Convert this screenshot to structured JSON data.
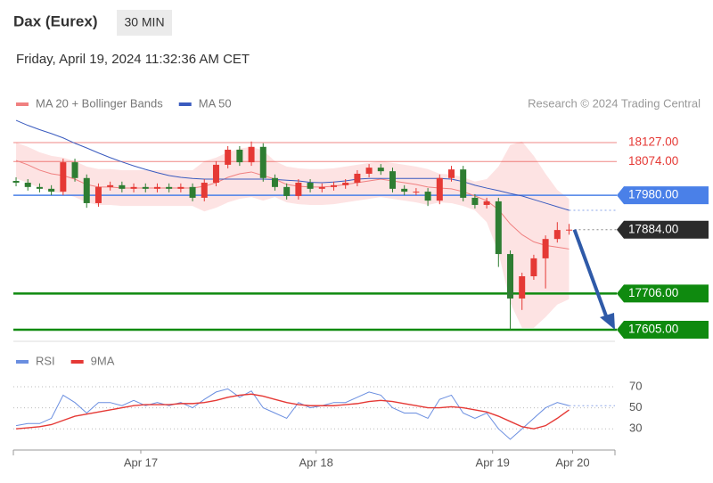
{
  "chart_data": {
    "type": "candlestick",
    "title": "Dax (Eurex)",
    "interval": "30 MIN",
    "subtitle": "Friday, April 19, 2024 11:32:36 AM CET",
    "credit": "Research © 2024 Trading Central",
    "up_color": "#e53935",
    "down_color": "#2e7d32",
    "ylim": [
      17580,
      18200
    ],
    "xlim": [
      -0.23,
      50.9
    ],
    "xticks": [
      {
        "value": 10.6,
        "label": "Apr 17"
      },
      {
        "value": 25.5,
        "label": "Apr 18"
      },
      {
        "value": 40.5,
        "label": "Apr 19"
      },
      {
        "value": 47.3,
        "label": "Apr 20"
      }
    ],
    "open": [
      18020,
      18015,
      18003,
      17998,
      17990,
      18072,
      18028,
      17958,
      18003,
      18008,
      17998,
      18003,
      17998,
      18003,
      17998,
      18003,
      17973,
      18015,
      18065,
      18107,
      18072,
      18115,
      18028,
      18003,
      17978,
      18015,
      17998,
      18003,
      18008,
      18015,
      18040,
      18057,
      18047,
      17998,
      17990,
      17990,
      17965,
      18028,
      18052,
      17973,
      17953,
      17963,
      17816,
      17692,
      17754,
      17804,
      17858,
      17883
    ],
    "high": [
      18030,
      18025,
      18013,
      18008,
      18082,
      18082,
      18038,
      18013,
      18018,
      18018,
      18013,
      18013,
      18013,
      18013,
      18013,
      18013,
      18025,
      18075,
      18117,
      18117,
      18130,
      18125,
      18038,
      18013,
      18025,
      18025,
      18013,
      18018,
      18025,
      18050,
      18067,
      18067,
      18057,
      18008,
      18000,
      18000,
      18038,
      18062,
      18062,
      17983,
      17973,
      17973,
      17826,
      17764,
      17814,
      17868,
      17905,
      17900
    ],
    "low": [
      18005,
      17993,
      17988,
      17980,
      17980,
      18018,
      17945,
      17948,
      17993,
      17988,
      17988,
      17988,
      17988,
      17988,
      17988,
      17963,
      17963,
      18005,
      18055,
      18062,
      18062,
      18018,
      17993,
      17968,
      17968,
      17988,
      17988,
      17993,
      17998,
      18005,
      18030,
      18037,
      17988,
      17980,
      17980,
      17950,
      17955,
      18018,
      17963,
      17943,
      17943,
      17780,
      17605,
      17660,
      17744,
      17720,
      17848,
      17870
    ],
    "close": [
      18015,
      18003,
      17998,
      17990,
      18072,
      18028,
      17958,
      18003,
      18008,
      17998,
      18003,
      17998,
      18003,
      17998,
      18003,
      17973,
      18015,
      18065,
      18107,
      18072,
      18115,
      18028,
      18003,
      17978,
      18015,
      17998,
      18003,
      18008,
      18015,
      18040,
      18057,
      18047,
      17998,
      17990,
      17990,
      17965,
      18028,
      18052,
      17973,
      17953,
      17963,
      17816,
      17692,
      17754,
      17804,
      17858,
      17883,
      17884
    ],
    "series": [
      {
        "name": "MA 20 + Bollinger Bands",
        "color": "#f08080",
        "values": [
          18077,
          18065,
          18050,
          18040,
          18035,
          18025,
          18010,
          18003,
          18003,
          18000,
          18000,
          18000,
          18000,
          18000,
          18000,
          18000,
          18005,
          18015,
          18030,
          18040,
          18045,
          18035,
          18025,
          18010,
          18005,
          18003,
          18003,
          18005,
          18010,
          18015,
          18020,
          18025,
          18020,
          18015,
          18010,
          18003,
          18000,
          17998,
          17990,
          17978,
          17965,
          17940,
          17900,
          17870,
          17850,
          17840,
          17835,
          17830
        ],
        "upper": [
          18127,
          18115,
          18100,
          18090,
          18085,
          18075,
          18060,
          18053,
          18053,
          18050,
          18050,
          18050,
          18050,
          18050,
          18050,
          18050,
          18075,
          18085,
          18100,
          18110,
          18115,
          18105,
          18075,
          18060,
          18055,
          18053,
          18053,
          18055,
          18060,
          18065,
          18070,
          18075,
          18070,
          18065,
          18060,
          18053,
          18040,
          18038,
          18030,
          18018,
          18025,
          18060,
          18120,
          18130,
          18090,
          18040,
          17995,
          17970
        ],
        "lower": [
          18027,
          18015,
          18000,
          17990,
          17985,
          17975,
          17960,
          17953,
          17953,
          17950,
          17950,
          17950,
          17950,
          17950,
          17950,
          17950,
          17935,
          17945,
          17960,
          17970,
          17975,
          17965,
          17975,
          17960,
          17955,
          17953,
          17953,
          17955,
          17960,
          17965,
          17970,
          17975,
          17970,
          17965,
          17960,
          17953,
          17960,
          17958,
          17950,
          17938,
          17905,
          17820,
          17680,
          17610,
          17610,
          17640,
          17675,
          17690
        ]
      },
      {
        "name": "MA 50",
        "color": "#3a5bbf",
        "values": [
          18189,
          18175,
          18163,
          18152,
          18140,
          18125,
          18112,
          18098,
          18085,
          18073,
          18062,
          18052,
          18043,
          18035,
          18030,
          18027,
          18025,
          18025,
          18025,
          18025,
          18025,
          18025,
          18024,
          18022,
          18020,
          18016,
          18015,
          18017,
          18020,
          18025,
          18027,
          18027,
          18027,
          18027,
          18027,
          18027,
          18027,
          18025,
          18018,
          18008,
          18000,
          17993,
          17985,
          17978,
          17968,
          17958,
          17948,
          17938
        ]
      }
    ],
    "levels": [
      {
        "value": 18127,
        "label": "18127.00",
        "color": "#e53935",
        "boxed": false,
        "dashed": false
      },
      {
        "value": 18074,
        "label": "18074.00",
        "color": "#e53935",
        "boxed": false,
        "dashed": false
      },
      {
        "value": 17980,
        "label": "17980.00",
        "color": "#4a80e8",
        "boxed": true,
        "dashed": false
      },
      {
        "value": 17884,
        "label": "17884.00",
        "color": "#2b2b2b",
        "boxed": true,
        "dashed": true
      },
      {
        "value": 17706,
        "label": "17706.00",
        "color": "#0f8a0f",
        "boxed": true,
        "dashed": false
      },
      {
        "value": 17605,
        "label": "17605.00",
        "color": "#0f8a0f",
        "boxed": true,
        "dashed": false
      }
    ],
    "rsi": {
      "ylim": [
        15,
        80
      ],
      "yticks": [
        70,
        50,
        30
      ],
      "series": [
        {
          "name": "RSI",
          "color": "#6a8ee0",
          "values": [
            33,
            35,
            35,
            40,
            62,
            55,
            45,
            55,
            55,
            52,
            57,
            52,
            55,
            52,
            55,
            50,
            58,
            65,
            68,
            60,
            66,
            50,
            45,
            40,
            55,
            50,
            52,
            55,
            55,
            60,
            65,
            62,
            50,
            45,
            45,
            40,
            58,
            62,
            45,
            40,
            45,
            30,
            20,
            30,
            40,
            50,
            55,
            52
          ]
        },
        {
          "name": "9MA",
          "color": "#e53935",
          "values": [
            30,
            31,
            32,
            34,
            38,
            42,
            44,
            46,
            48,
            50,
            52,
            53,
            53,
            53,
            54,
            54,
            55,
            57,
            60,
            62,
            63,
            61,
            58,
            55,
            53,
            52,
            52,
            52,
            53,
            54,
            56,
            57,
            56,
            54,
            52,
            50,
            50,
            51,
            50,
            48,
            46,
            42,
            37,
            32,
            30,
            33,
            40,
            48
          ]
        }
      ]
    }
  }
}
